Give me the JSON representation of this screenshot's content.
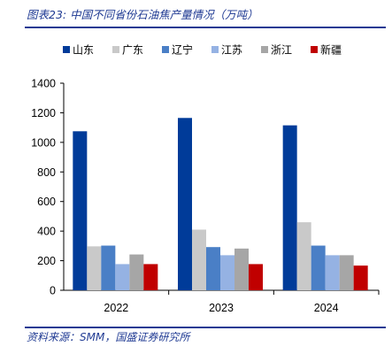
{
  "title": "图表23:  中国不同省份石油焦产量情况（万吨）",
  "source": "资料来源：SMM，国盛证券研究所",
  "chart_data": {
    "type": "bar",
    "categories": [
      "2022",
      "2023",
      "2024"
    ],
    "ylim": [
      0,
      1400
    ],
    "yticks": [
      0,
      200,
      400,
      600,
      800,
      1000,
      1200,
      1400
    ],
    "legend_position": "top",
    "series": [
      {
        "name": "山东",
        "color": "#003b99",
        "values": [
          1075,
          1165,
          1115
        ]
      },
      {
        "name": "广东",
        "color": "#c9c9c9",
        "values": [
          297,
          410,
          460
        ]
      },
      {
        "name": "辽宁",
        "color": "#4a7fc6",
        "values": [
          302,
          292,
          302
        ]
      },
      {
        "name": "江苏",
        "color": "#95b2e3",
        "values": [
          177,
          237,
          237
        ]
      },
      {
        "name": "浙江",
        "color": "#a6a6a6",
        "values": [
          242,
          282,
          237
        ]
      },
      {
        "name": "新疆",
        "color": "#c00000",
        "values": [
          177,
          177,
          167
        ]
      }
    ]
  }
}
